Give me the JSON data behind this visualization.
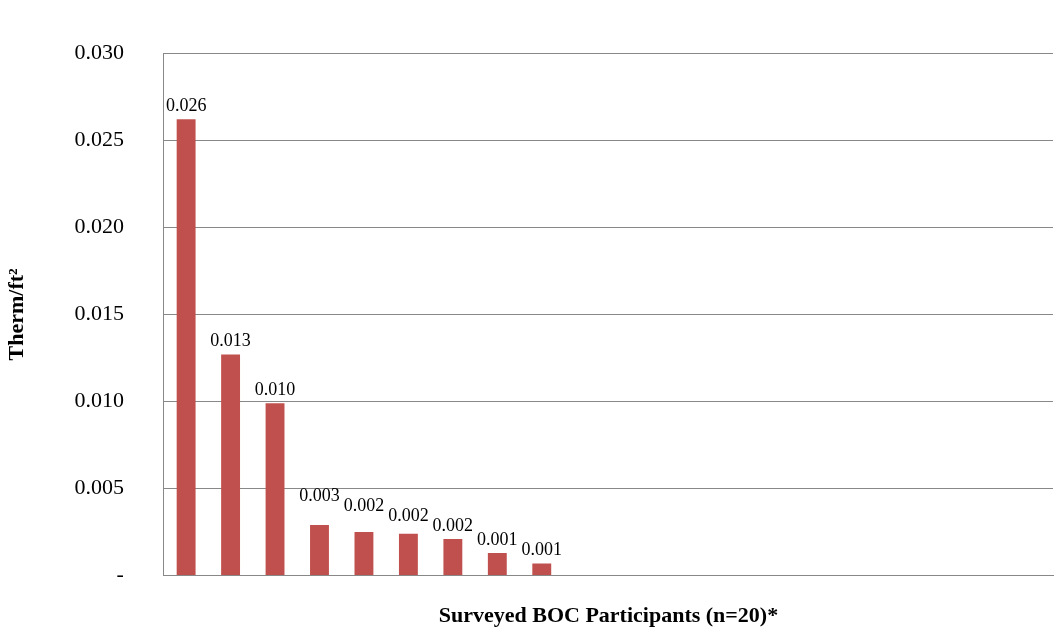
{
  "chart_data": {
    "type": "bar",
    "xlabel": "Surveyed BOC Participants (n=20)*",
    "ylabel": "Therm/ft²",
    "categories": [
      null,
      null,
      null,
      null,
      null,
      null,
      null,
      null,
      null,
      null,
      null,
      null,
      null,
      null,
      null,
      null,
      null,
      null,
      null,
      null
    ],
    "values": [
      0.0262,
      0.0127,
      0.0099,
      0.0029,
      0.0025,
      0.0024,
      0.0021,
      0.0013,
      0.0007,
      null,
      null,
      null,
      null,
      null,
      null,
      null,
      null,
      null,
      null,
      null
    ],
    "value_labels": [
      "0.026",
      "0.013",
      "0.010",
      "0.003",
      "0.002",
      "0.002",
      "0.002",
      "0.001",
      "0.001",
      null,
      null,
      null,
      null,
      null,
      null,
      null,
      null,
      null,
      null,
      null
    ],
    "color": "#c0504d",
    "ylim": [
      0,
      0.03
    ],
    "yticks": [
      {
        "value": 0,
        "label": "-"
      },
      0.005,
      {
        "value": 0.01,
        "label": "0.010"
      },
      0.015,
      {
        "value": 0.02,
        "label": "0.020"
      },
      0.025,
      {
        "value": 0.03,
        "label": "0.030"
      }
    ],
    "grid": "y",
    "legend": false
  }
}
